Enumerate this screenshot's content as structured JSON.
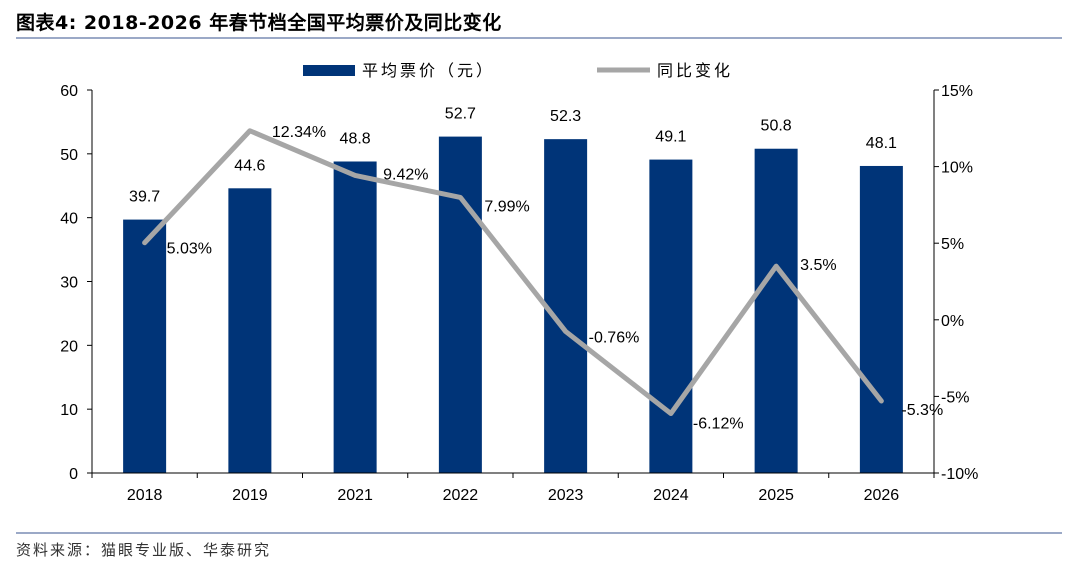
{
  "title": "图表4:   2018-2026 年春节档全国平均票价及同比变化",
  "source": "资料来源：猫眼专业版、华泰研究",
  "colors": {
    "bar": "#003478",
    "line": "#a6a6a6",
    "axis": "#000000",
    "rule": "#9ba9c7"
  },
  "chart_data": {
    "type": "bar",
    "categories": [
      "2018",
      "2019",
      "2021",
      "2022",
      "2023",
      "2024",
      "2025",
      "2026"
    ],
    "series": [
      {
        "name": "平均票价（元）",
        "type": "bar",
        "axis": "left",
        "values": [
          39.7,
          44.6,
          48.8,
          52.7,
          52.3,
          49.1,
          50.8,
          48.1
        ],
        "labels": [
          "39.7",
          "44.6",
          "48.8",
          "52.7",
          "52.3",
          "49.1",
          "50.8",
          "48.1"
        ]
      },
      {
        "name": "同比变化",
        "type": "line",
        "axis": "right",
        "values": [
          5.03,
          12.34,
          9.42,
          7.99,
          -0.76,
          -6.12,
          3.5,
          -5.3
        ],
        "labels": [
          "5.03%",
          "12.34%",
          "9.42%",
          "7.99%",
          "-0.76%",
          "-6.12%",
          "3.5%",
          "-5.3%"
        ]
      }
    ],
    "left_axis": {
      "ylim": [
        0,
        60
      ],
      "ticks": [
        "0",
        "10",
        "20",
        "30",
        "40",
        "50",
        "60"
      ]
    },
    "right_axis": {
      "ylim": [
        -10,
        15
      ],
      "ticks": [
        "-10%",
        "-5%",
        "0%",
        "5%",
        "10%",
        "15%"
      ]
    },
    "legend_position": "top-center",
    "grid": false
  }
}
